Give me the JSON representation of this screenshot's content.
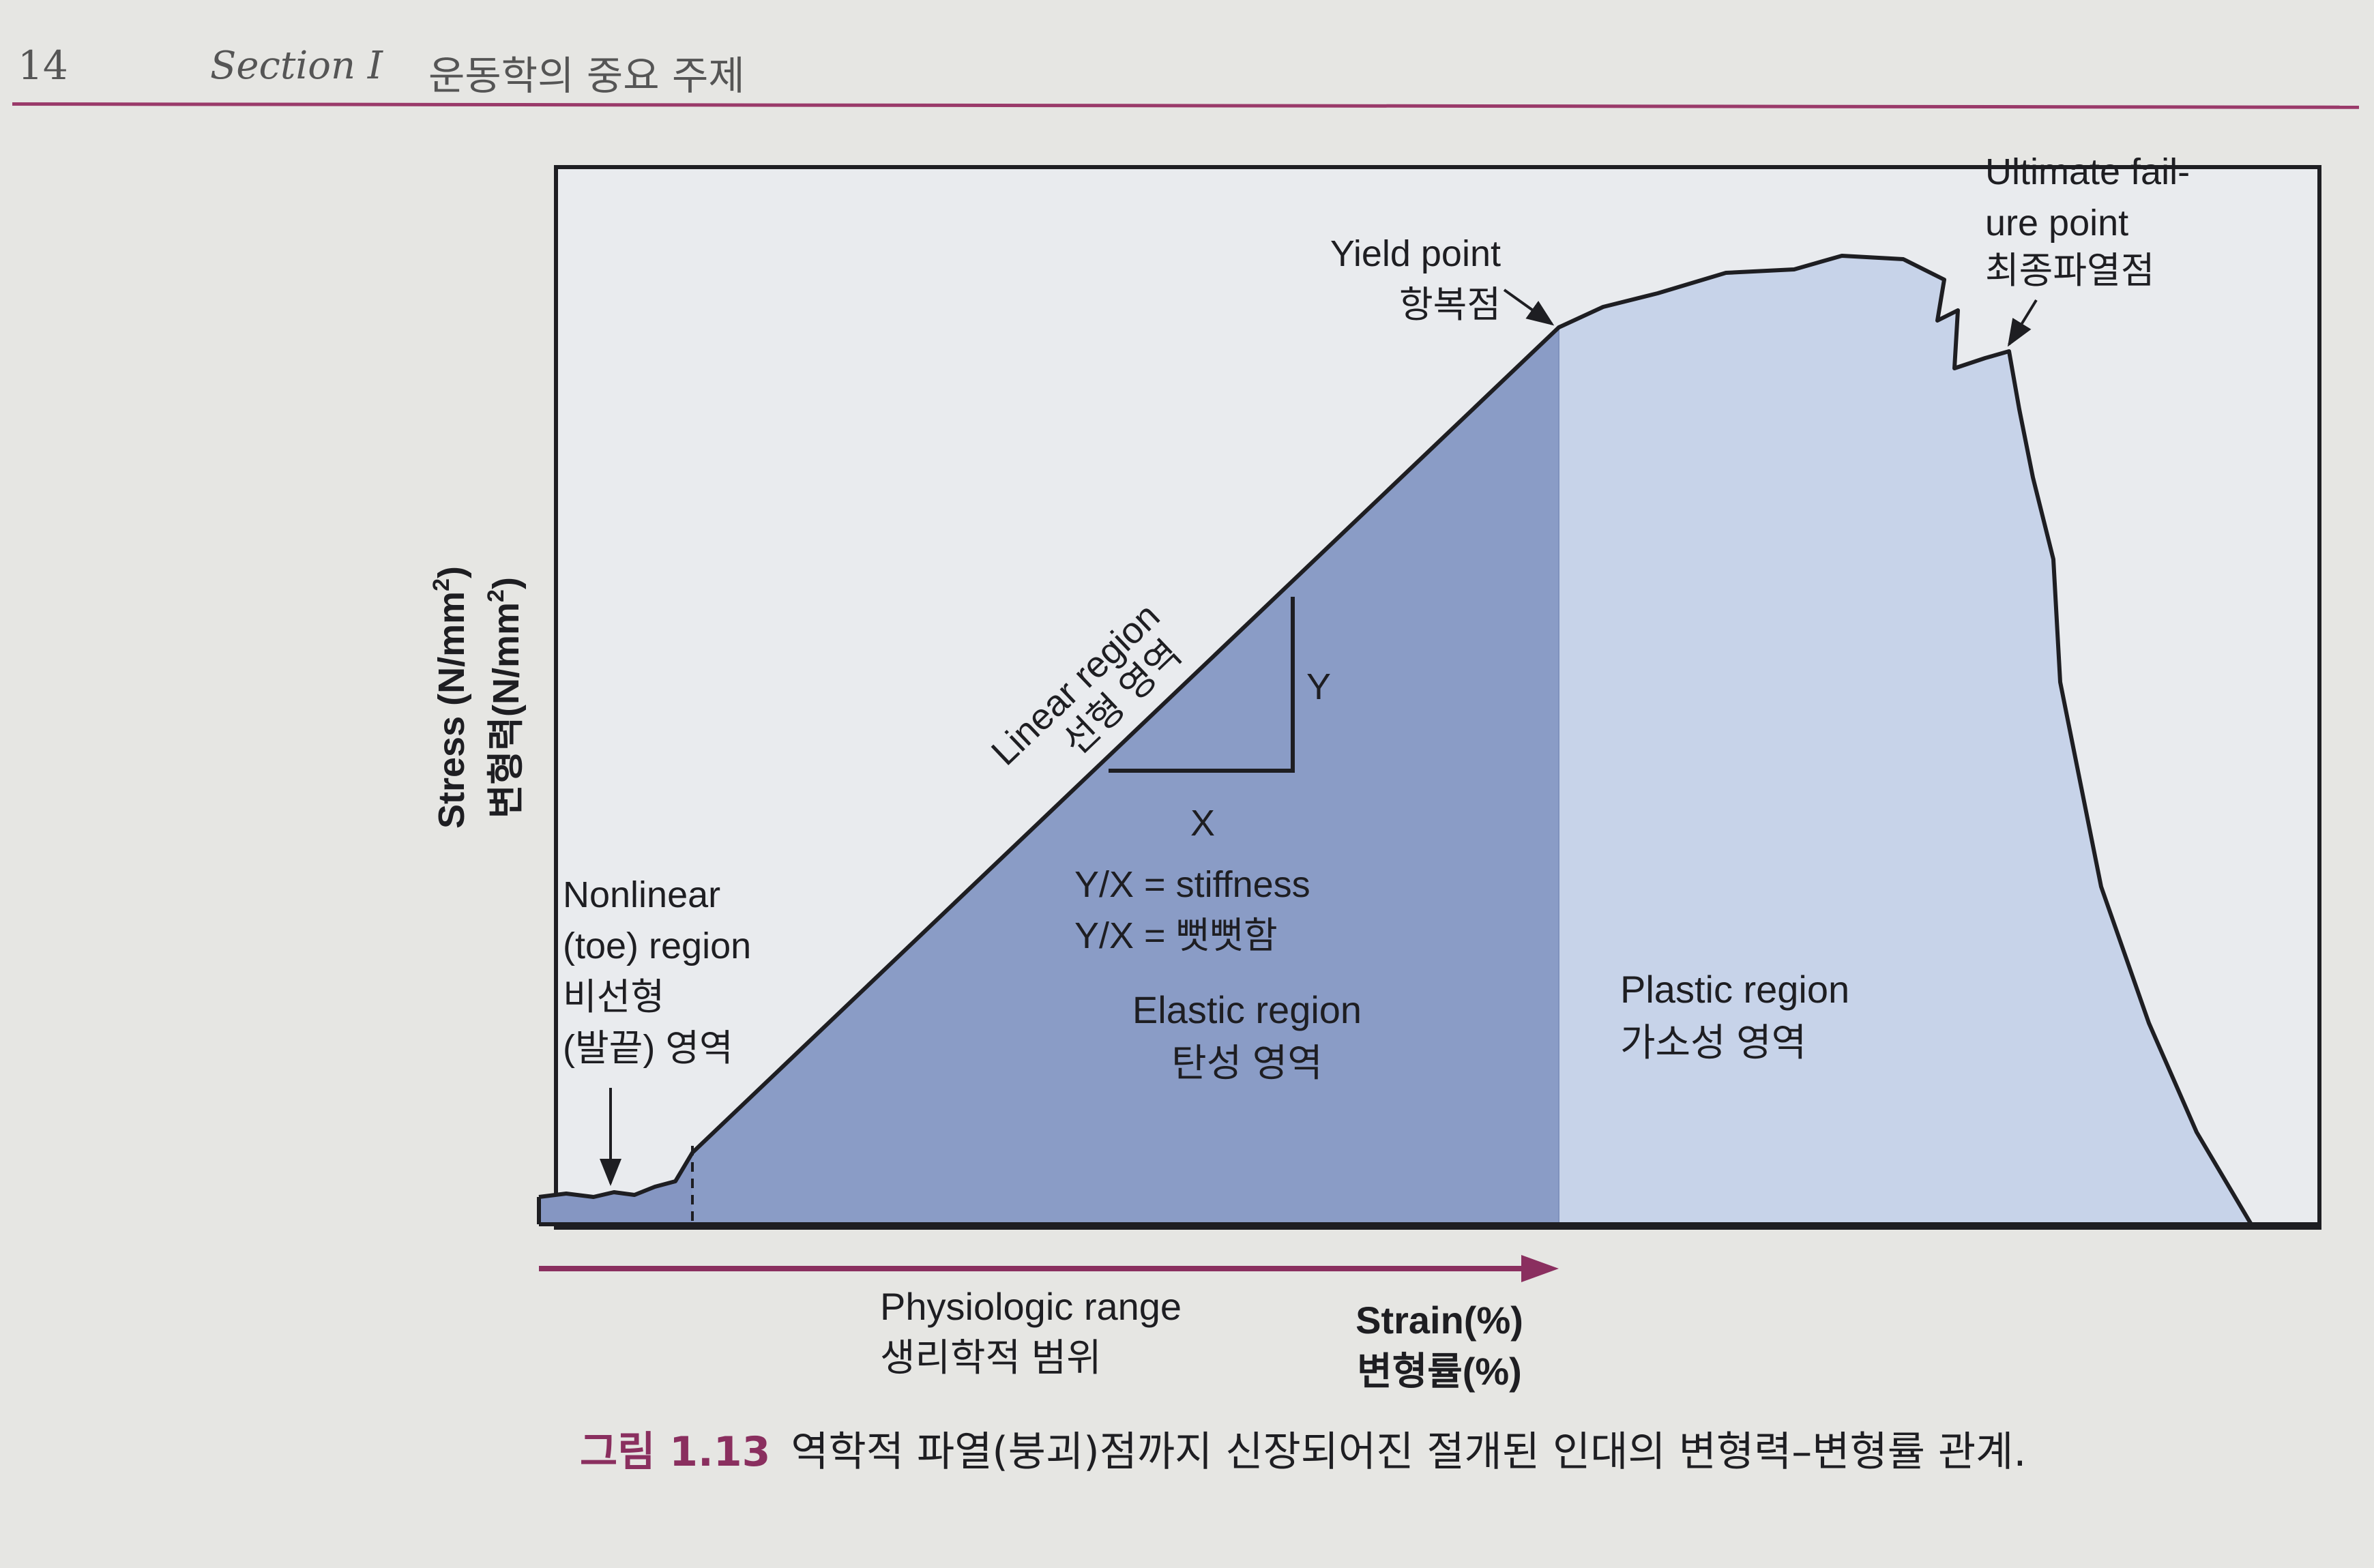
{
  "header": {
    "page_number": "14",
    "section_label": "Section I",
    "section_title": "운동학의 중요 주제"
  },
  "diagram": {
    "y_axis": {
      "en": "Stress (N/mm",
      "en_sup": "2",
      "en_tail": ")",
      "ko": "변형력(N/mm",
      "ko_sup": "2",
      "ko_tail": ")"
    },
    "x_axis": {
      "en": "Strain(%)",
      "ko": "변형률(%)"
    },
    "physiologic_range": {
      "en": "Physiologic range",
      "ko": "생리학적 범위"
    },
    "yield_point": {
      "en": "Yield point",
      "ko": "항복점"
    },
    "ultimate_failure": {
      "line1": "Ultimate fail-",
      "line2": "ure point",
      "ko": "최종파열점"
    },
    "linear_region": {
      "en": "Linear region",
      "ko": "선형 영역"
    },
    "slope": {
      "y": "Y",
      "x": "X",
      "stiffness_en": "Y/X = stiffness",
      "stiffness_ko": "Y/X = 뻣뻣함"
    },
    "nonlinear_region": {
      "line1": "Nonlinear",
      "line2": "(toe) region",
      "line3": "비선형",
      "line4": "(발끝) 영역"
    },
    "elastic_region": {
      "en": "Elastic region",
      "ko": "탄성 영역"
    },
    "plastic_region": {
      "en": "Plastic region",
      "ko": "가소성 영역"
    },
    "colors": {
      "elastic": "#8a9cc6",
      "toe": "#8596c2",
      "plastic": "#c7d3e9",
      "arrow": "#8a2f5f"
    }
  },
  "caption": {
    "number": "그림 1.13",
    "text": "역학적 파열(붕괴)점까지 신장되어진 절개된 인대의 변형력–변형률 관계."
  }
}
